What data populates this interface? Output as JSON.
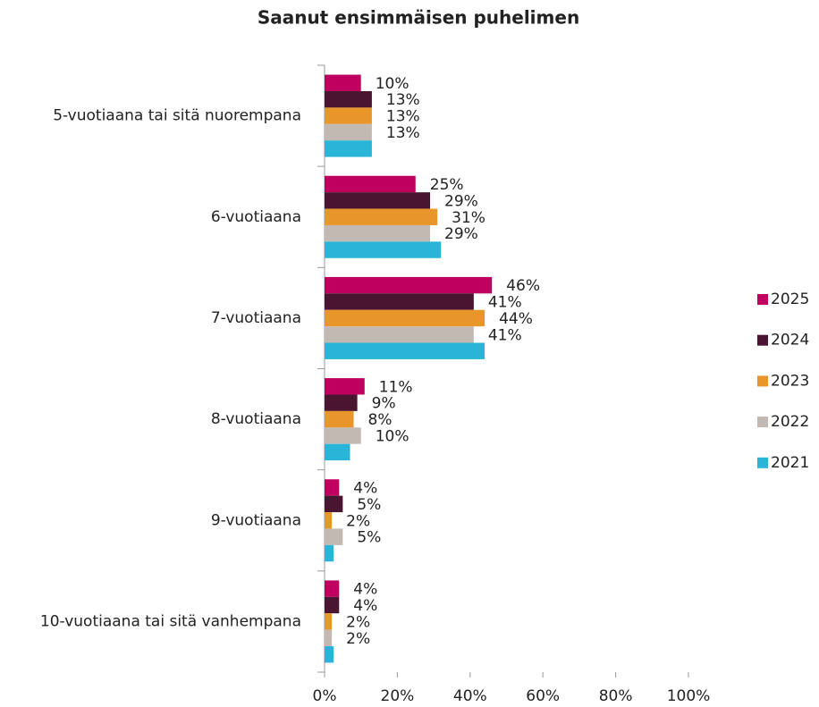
{
  "chart_data": {
    "type": "bar",
    "orientation": "horizontal",
    "title": "Saanut ensimmäisen puhelimen",
    "categories": [
      "5-vuotiaana tai sitä nuorempana",
      "6-vuotiaana",
      "7-vuotiaana",
      "8-vuotiaana",
      "9-vuotiaana",
      "10-vuotiaana tai sitä vanhempana"
    ],
    "series": [
      {
        "name": "2025",
        "color": "#c0005f",
        "values": [
          10,
          25,
          46,
          11,
          4,
          4
        ],
        "value_labels": [
          "10%",
          "25%",
          "46%",
          "11%",
          "4%",
          "4%"
        ]
      },
      {
        "name": "2024",
        "color": "#4a1530",
        "values": [
          13,
          29,
          41,
          9,
          5,
          4
        ],
        "value_labels": [
          "13%",
          "29%",
          "41%",
          "9%",
          "5%",
          "4%"
        ]
      },
      {
        "name": "2023",
        "color": "#e8962a",
        "values": [
          13,
          31,
          44,
          8,
          2,
          2
        ],
        "value_labels": [
          "13%",
          "31%",
          "44%",
          "8%",
          "2%",
          "2%"
        ]
      },
      {
        "name": "2022",
        "color": "#c2bab2",
        "values": [
          13,
          29,
          41,
          10,
          5,
          2
        ],
        "value_labels": [
          "13%",
          "29%",
          "41%",
          "10%",
          "5%",
          "2%"
        ]
      },
      {
        "name": "2021",
        "color": "#29b5d8",
        "values": [
          13,
          32,
          44,
          7,
          2.5,
          2.5
        ]
      }
    ],
    "xlim": [
      0,
      100
    ],
    "xticks": [
      {
        "value": 0,
        "label": "0%"
      },
      {
        "value": 20,
        "label": "20%"
      },
      {
        "value": 40,
        "label": "40%"
      },
      {
        "value": 60,
        "label": "60%"
      },
      {
        "value": 80,
        "label": "80%"
      },
      {
        "value": 100,
        "label": "100%"
      }
    ],
    "legend": "right"
  }
}
